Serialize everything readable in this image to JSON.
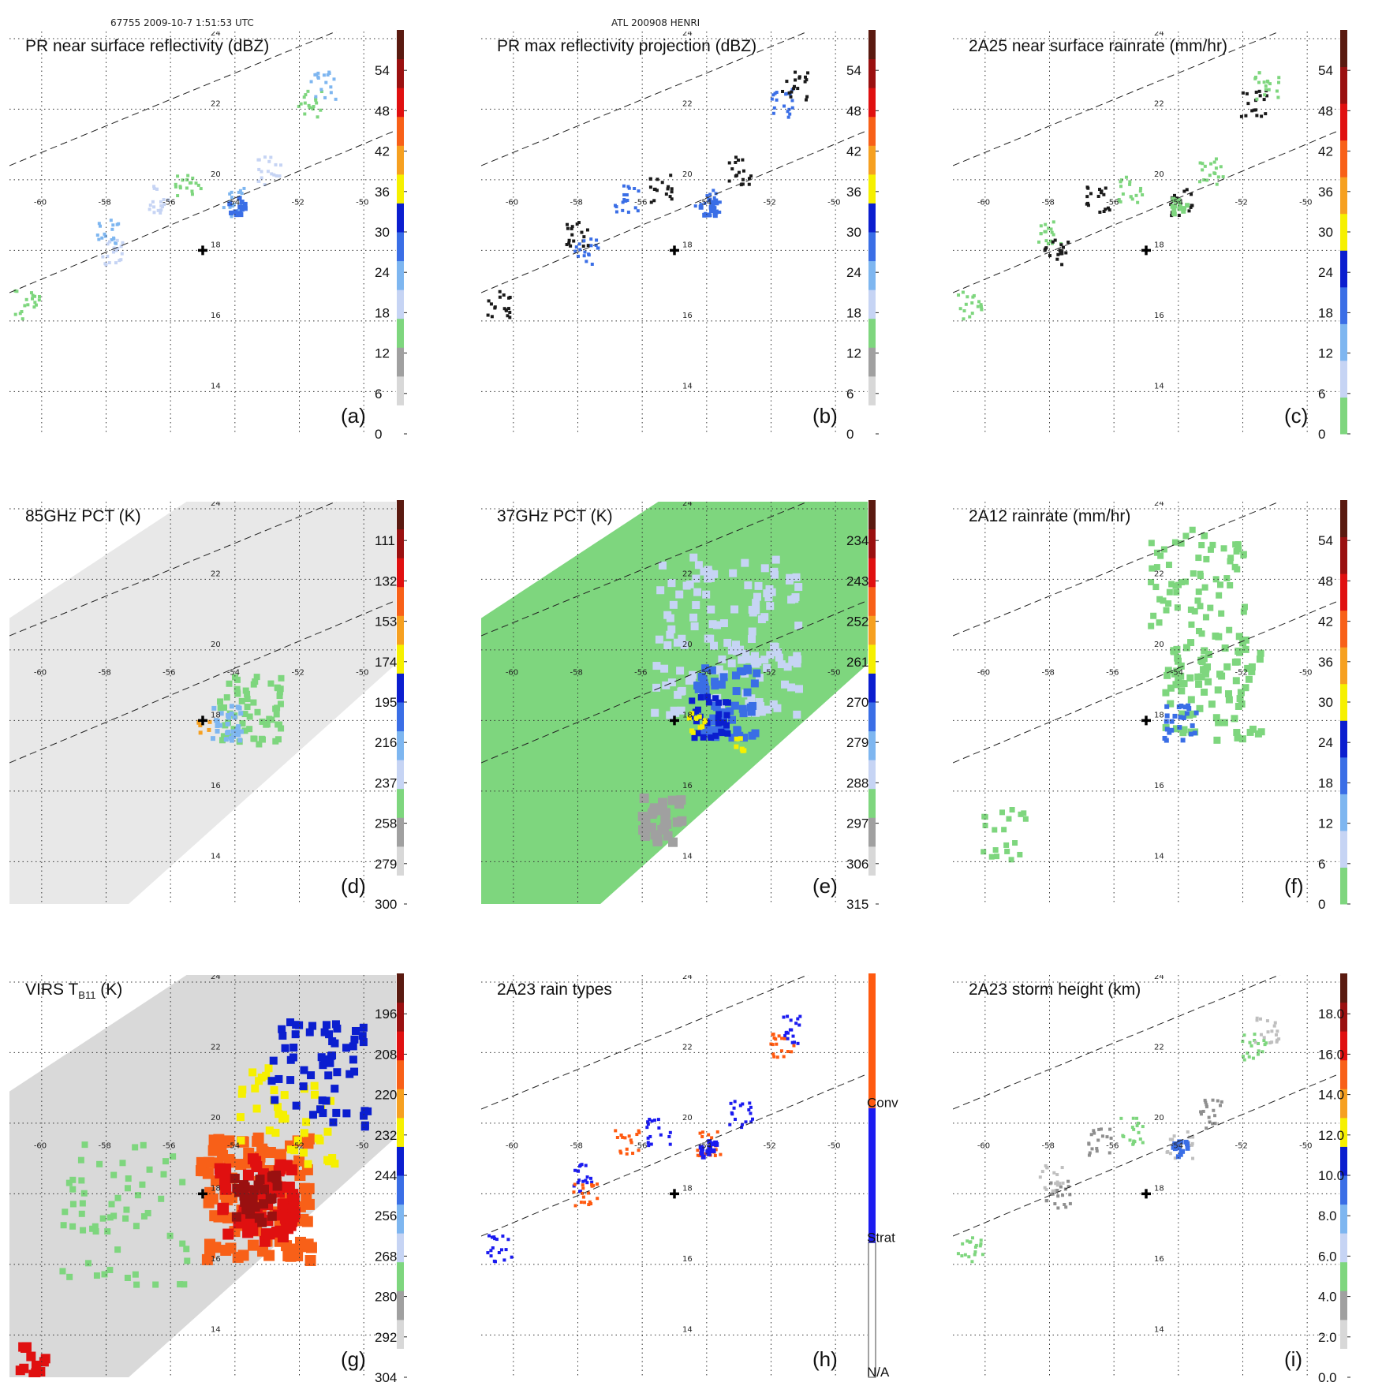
{
  "header": {
    "orbit_time": "67755 2009-10-7 1:51:53 UTC",
    "storm_id": "ATL 200908 HENRI"
  },
  "colors": {
    "na": "#ffffff",
    "gray_light": "#d8d8d8",
    "gray_dark": "#a0a0a0",
    "green": "#7ed67e",
    "blue_pale": "#c6d4f4",
    "blue_light": "#7eb6f0",
    "blue_mid": "#3a6ee6",
    "blue_dark": "#0b1ecf",
    "yellow": "#f6f000",
    "orange": "#f6a020",
    "orange_red": "#f86018",
    "red": "#e01010",
    "dark_red": "#9a1010",
    "brown": "#5a1a10",
    "conv": "#ff5a10",
    "strat": "#1b1bf0"
  },
  "chart_data": [
    {
      "id": "a",
      "type": "heatmap",
      "panel_label": "(a)",
      "title": "PR near surface reflectivity (dBZ)",
      "colorbar": {
        "ticks": [
          "0",
          "6",
          "12",
          "18",
          "24",
          "30",
          "36",
          "42",
          "48",
          "54"
        ],
        "range": [
          0,
          60
        ],
        "step": 6
      }
    },
    {
      "id": "b",
      "type": "heatmap",
      "panel_label": "(b)",
      "title": "PR max reflectivity projection (dBZ)",
      "colorbar": {
        "ticks": [
          "0",
          "6",
          "12",
          "18",
          "24",
          "30",
          "36",
          "42",
          "48",
          "54"
        ],
        "range": [
          0,
          60
        ],
        "step": 6
      }
    },
    {
      "id": "c",
      "type": "heatmap",
      "panel_label": "(c)",
      "title": "2A25 near surface rainrate (mm/hr)",
      "colorbar": {
        "ticks": [
          "0",
          "6",
          "12",
          "18",
          "24",
          "30",
          "36",
          "42",
          "48",
          "54"
        ],
        "range": [
          0,
          60
        ],
        "step": 6
      }
    },
    {
      "id": "d",
      "type": "heatmap",
      "panel_label": "(d)",
      "title": "85GHz PCT (K)",
      "colorbar": {
        "ticks": [
          "300",
          "279",
          "258",
          "237",
          "216",
          "195",
          "174",
          "153",
          "132",
          "111"
        ],
        "range": [
          300,
          90
        ],
        "step": -21
      }
    },
    {
      "id": "e",
      "type": "heatmap",
      "panel_label": "(e)",
      "title": "37GHz PCT (K)",
      "colorbar": {
        "ticks": [
          "315",
          "306",
          "297",
          "288",
          "279",
          "270",
          "261",
          "252",
          "243",
          "234"
        ],
        "range": [
          315,
          225
        ],
        "step": -9
      }
    },
    {
      "id": "f",
      "type": "heatmap",
      "panel_label": "(f)",
      "title": "2A12 rainrate (mm/hr)",
      "colorbar": {
        "ticks": [
          "0",
          "6",
          "12",
          "18",
          "24",
          "30",
          "36",
          "42",
          "48",
          "54"
        ],
        "range": [
          0,
          60
        ],
        "step": 6
      }
    },
    {
      "id": "g",
      "type": "heatmap",
      "panel_label": "(g)",
      "title": "VIRS T",
      "title_sub": "B11",
      "title_suffix": " (K)",
      "colorbar": {
        "ticks": [
          "304",
          "292",
          "280",
          "268",
          "256",
          "244",
          "232",
          "220",
          "208",
          "196"
        ],
        "range": [
          304,
          184
        ],
        "step": -12
      }
    },
    {
      "id": "h",
      "type": "heatmap",
      "panel_label": "(h)",
      "title": "2A23 rain types",
      "colorbar": {
        "categorical": [
          "N/A",
          "Strat",
          "Conv"
        ]
      }
    },
    {
      "id": "i",
      "type": "heatmap",
      "panel_label": "(i)",
      "title": "2A23 storm height (km)",
      "colorbar": {
        "ticks": [
          "0.0",
          "2.0",
          "4.0",
          "6.0",
          "8.0",
          "10.0",
          "12.0",
          "14.0",
          "16.0",
          "18.0"
        ],
        "range": [
          0,
          20
        ],
        "step": 2
      }
    }
  ],
  "map": {
    "lon_min": -61,
    "lon_max": -49,
    "lat_min": 12.8,
    "lat_max": 24.2,
    "lon_ticks": [
      -60,
      -58,
      -56,
      -54,
      -52,
      -50
    ],
    "lat_ticks": [
      14,
      16,
      18,
      20,
      22,
      24
    ],
    "lon_labels": [
      "-60",
      "-58",
      "-56",
      "-54",
      "-52",
      "-50"
    ],
    "lat_labels": [
      "14",
      "16",
      "18",
      "20",
      "22",
      "24"
    ],
    "storm_center": {
      "lon": -55.0,
      "lat": 18.0
    }
  }
}
